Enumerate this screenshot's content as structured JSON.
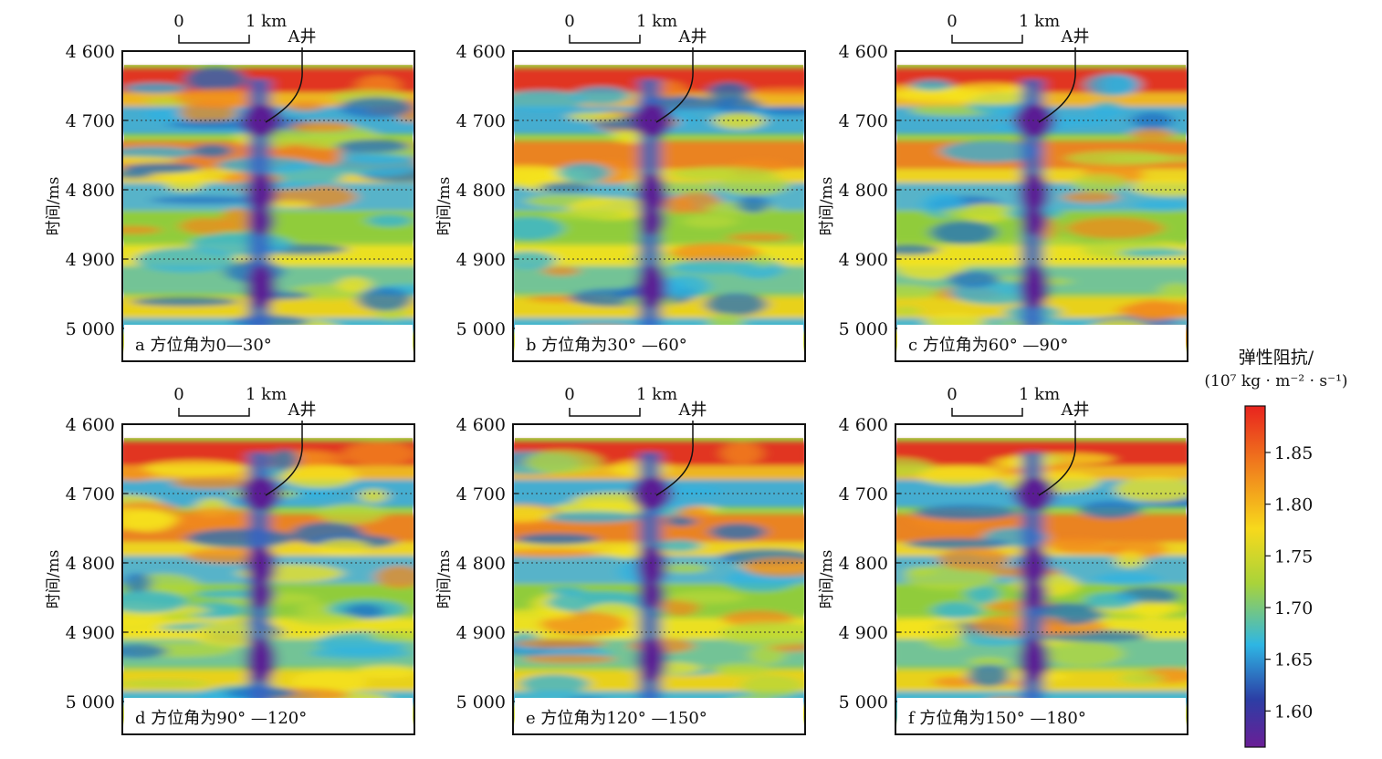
{
  "scalebar": {
    "start": "0",
    "end": "1 km"
  },
  "well_label": "A井",
  "ylabel": "时间/ms",
  "colorbar": {
    "title_line1": "弹性阻抗/",
    "title_line2": "(10⁷ kg · m⁻² · s⁻¹)",
    "ticks": [
      "1.85",
      "1.80",
      "1.75",
      "1.70",
      "1.65",
      "1.60"
    ],
    "colors": [
      "#e8231e",
      "#f07b1d",
      "#f7d91c",
      "#a9d33a",
      "#2eb6e4",
      "#2c3ea5",
      "#6a1e96"
    ]
  },
  "chart_data": [
    {
      "type": "heatmap",
      "panel_label": "a 方位角为0—30°",
      "yticks": [
        "4 600",
        "4 700",
        "4 800",
        "4 900",
        "5 000"
      ],
      "y": [
        4600,
        4700,
        4800,
        4900,
        5000
      ],
      "ylim": [
        4600,
        5050
      ],
      "grid_dotted_at": [
        4700,
        4800,
        4900,
        5000
      ]
    },
    {
      "type": "heatmap",
      "panel_label": "b 方位角为30° —60°",
      "yticks": [
        "4 600",
        "4 700",
        "4 800",
        "4 900",
        "5 000"
      ],
      "y": [
        4600,
        4700,
        4800,
        4900,
        5000
      ],
      "ylim": [
        4600,
        5050
      ],
      "grid_dotted_at": [
        4700,
        4800,
        4900,
        5000
      ]
    },
    {
      "type": "heatmap",
      "panel_label": "c 方位角为60° —90°",
      "yticks": [
        "4 600",
        "4 700",
        "4 800",
        "4 900",
        "5 000"
      ],
      "y": [
        4600,
        4700,
        4800,
        4900,
        5000
      ],
      "ylim": [
        4600,
        5050
      ],
      "grid_dotted_at": [
        4700,
        4800,
        4900,
        5000
      ]
    },
    {
      "type": "heatmap",
      "panel_label": "d 方位角为90° —120°",
      "yticks": [
        "4 600",
        "4 700",
        "4 800",
        "4 900",
        "5 000"
      ],
      "y": [
        4600,
        4700,
        4800,
        4900,
        5000
      ],
      "ylim": [
        4600,
        5050
      ],
      "grid_dotted_at": [
        4700,
        4800,
        4900,
        5000
      ]
    },
    {
      "type": "heatmap",
      "panel_label": "e 方位角为120° —150°",
      "yticks": [
        "4 600",
        "4 700",
        "4 800",
        "4 900",
        "5 000"
      ],
      "y": [
        4600,
        4700,
        4800,
        4900,
        5000
      ],
      "ylim": [
        4600,
        5050
      ],
      "grid_dotted_at": [
        4700,
        4800,
        4900,
        5000
      ]
    },
    {
      "type": "heatmap",
      "panel_label": "f 方位角为150° —180°",
      "yticks": [
        "4 600",
        "4 700",
        "4 800",
        "4 900",
        "5 000"
      ],
      "y": [
        4600,
        4700,
        4800,
        4900,
        5000
      ],
      "ylim": [
        4600,
        5050
      ],
      "grid_dotted_at": [
        4700,
        4800,
        4900,
        5000
      ]
    }
  ]
}
